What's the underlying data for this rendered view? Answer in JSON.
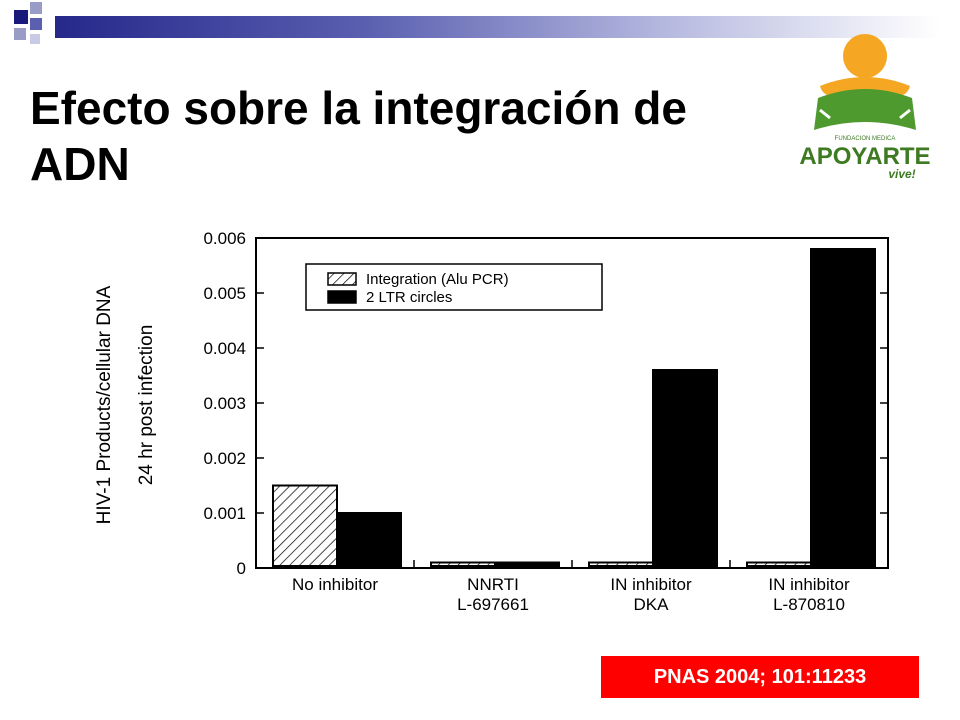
{
  "slide": {
    "title": "Efecto sobre la integración de ADN",
    "citation": "PNAS 2004; 101:11233"
  },
  "logo": {
    "text_small": "FUNDACION MEDICA",
    "text_main": "APOYARTE",
    "text_tag": "vive!",
    "colors": {
      "head": "#f5a623",
      "body": "#4e9a2f",
      "text": "#3d7a22"
    }
  },
  "colors": {
    "bar_bar": "#1a1a7a",
    "integration": "hatch",
    "ltr": "#000000",
    "citation_bg": "#ff0000"
  },
  "chart_data": {
    "type": "bar",
    "ylabel_line1": "HIV-1 Products/cellular DNA",
    "ylabel_line2": "24 hr post infection",
    "xlabel": "",
    "ylim": [
      0,
      0.006
    ],
    "yticks": [
      "0",
      "0.001",
      "0.002",
      "0.003",
      "0.004",
      "0.005",
      "0.006"
    ],
    "categories": [
      [
        "No inhibitor"
      ],
      [
        "NNRTI",
        "L-697661"
      ],
      [
        "IN inhibitor",
        "DKA"
      ],
      [
        "IN inhibitor",
        "L-870810"
      ]
    ],
    "series": [
      {
        "name": "Integration (Alu PCR)",
        "values": [
          0.0015,
          0.0001,
          0.0001,
          0.0001
        ],
        "pattern": "hatch"
      },
      {
        "name": "2 LTR circles",
        "values": [
          0.001,
          0.0001,
          0.0036,
          0.0058
        ],
        "pattern": "solid"
      }
    ],
    "legend_position": "top-left"
  }
}
